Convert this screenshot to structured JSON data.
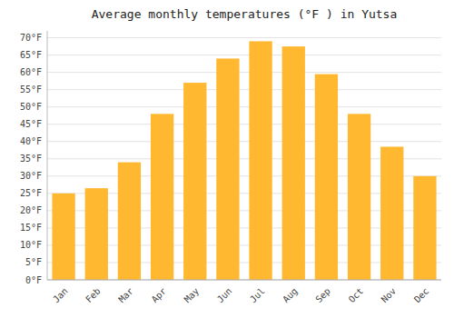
{
  "chart_data": {
    "type": "bar",
    "title": "Average monthly temperatures (°F ) in Yutsa",
    "categories": [
      "Jan",
      "Feb",
      "Mar",
      "Apr",
      "May",
      "Jun",
      "Jul",
      "Aug",
      "Sep",
      "Oct",
      "Nov",
      "Dec"
    ],
    "values": [
      25,
      26.5,
      34,
      48,
      57,
      64,
      69,
      67.5,
      59.5,
      48,
      38.5,
      30
    ],
    "color": "#FFB830",
    "ylim": [
      0,
      72
    ],
    "yticks": [
      {
        "value": 0,
        "label": "0°F"
      },
      {
        "value": 5,
        "label": "5°F"
      },
      {
        "value": 10,
        "label": "10°F"
      },
      {
        "value": 15,
        "label": "15°F"
      },
      {
        "value": 20,
        "label": "20°F"
      },
      {
        "value": 25,
        "label": "25°F"
      },
      {
        "value": 30,
        "label": "30°F"
      },
      {
        "value": 35,
        "label": "35°F"
      },
      {
        "value": 40,
        "label": "40°F"
      },
      {
        "value": 45,
        "label": "45°F"
      },
      {
        "value": 50,
        "label": "50°F"
      },
      {
        "value": 55,
        "label": "55°F"
      },
      {
        "value": 60,
        "label": "60°F"
      },
      {
        "value": 65,
        "label": "65°F"
      },
      {
        "value": 70,
        "label": "70°F"
      }
    ],
    "grid": true
  }
}
